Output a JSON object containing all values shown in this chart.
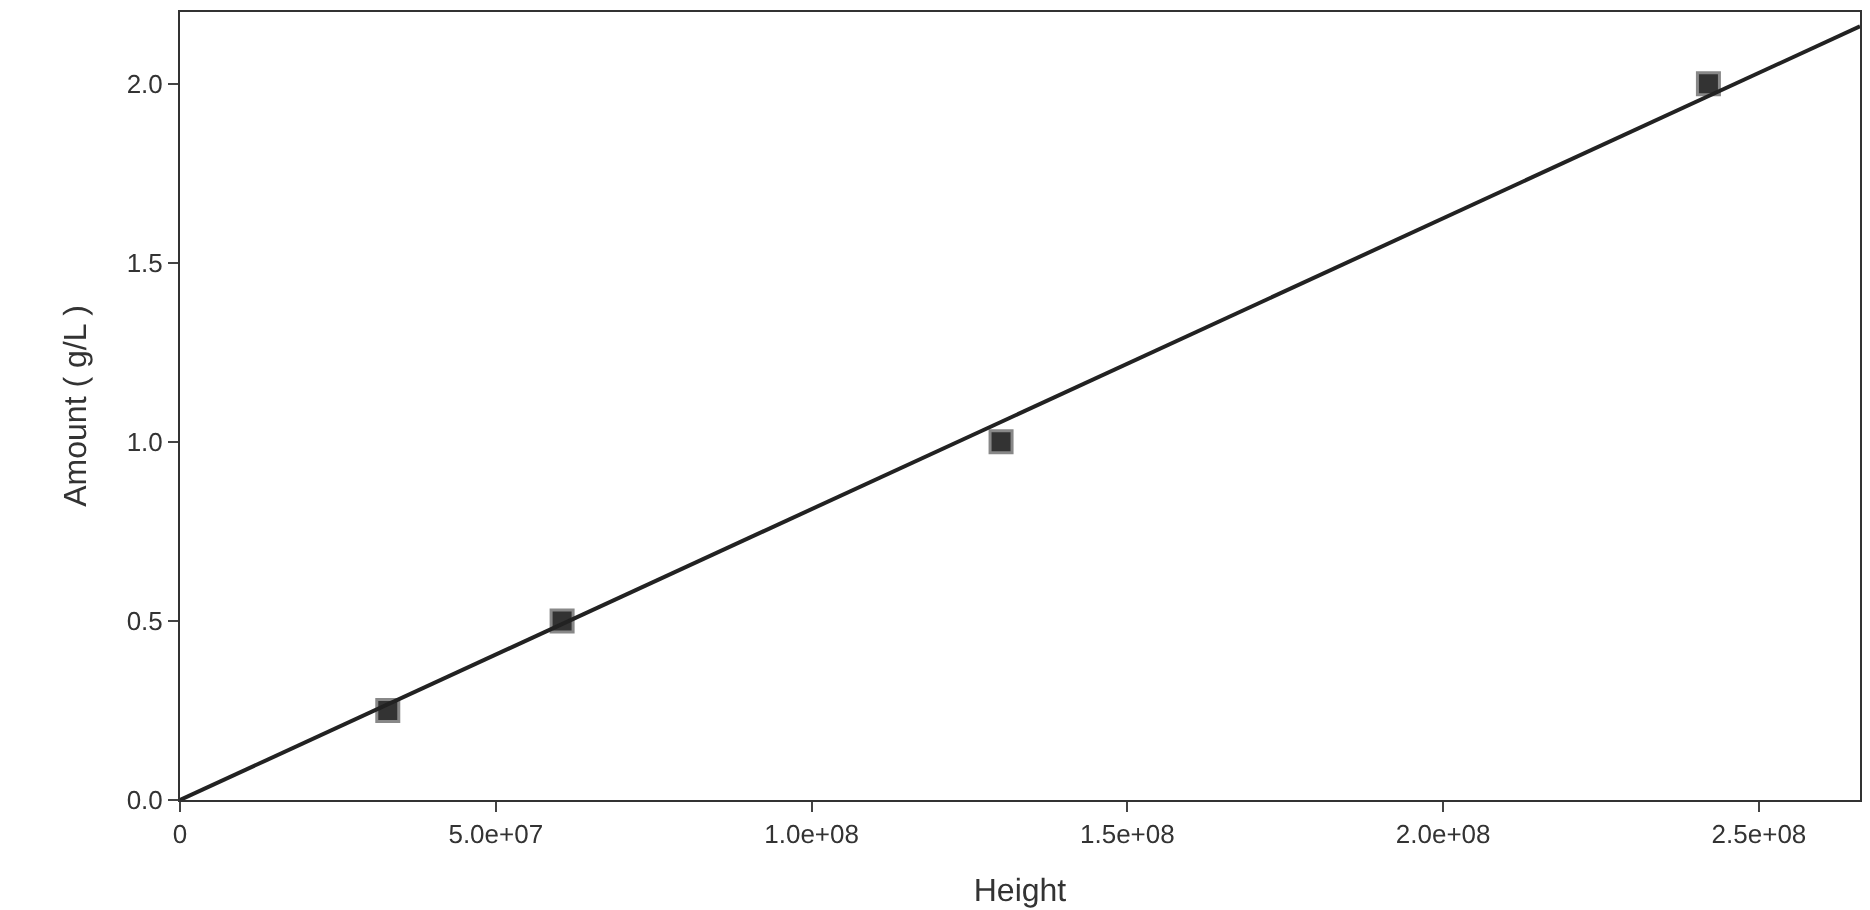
{
  "chart_data": {
    "type": "scatter",
    "xlabel": "Height",
    "ylabel": "Amount ( g/L )",
    "xlim": [
      0,
      266000000
    ],
    "ylim": [
      0,
      2.2
    ],
    "xticks": [
      {
        "value": 0,
        "label": "0"
      },
      {
        "value": 50000000,
        "label": "5.0e+07"
      },
      {
        "value": 100000000,
        "label": "1.0e+08"
      },
      {
        "value": 150000000,
        "label": "1.5e+08"
      },
      {
        "value": 200000000,
        "label": "2.0e+08"
      },
      {
        "value": 250000000,
        "label": "2.5e+08"
      }
    ],
    "yticks": [
      {
        "value": 0,
        "label": "0.0"
      },
      {
        "value": 0.5,
        "label": "0.5"
      },
      {
        "value": 1,
        "label": "1.0"
      },
      {
        "value": 1.5,
        "label": "1.5"
      },
      {
        "value": 2,
        "label": "2.0"
      }
    ],
    "series": [
      {
        "marker": "square",
        "color": "#333333",
        "x": [
          32900000,
          60500000,
          130000000,
          242000000
        ],
        "values": [
          0.25,
          0.5,
          1.0,
          2.0
        ]
      },
      {
        "type": "line",
        "marker": "none",
        "line_style": "solid",
        "color": "#222222",
        "x": [
          0,
          266000000
        ],
        "values": [
          0,
          2.16
        ]
      }
    ]
  }
}
